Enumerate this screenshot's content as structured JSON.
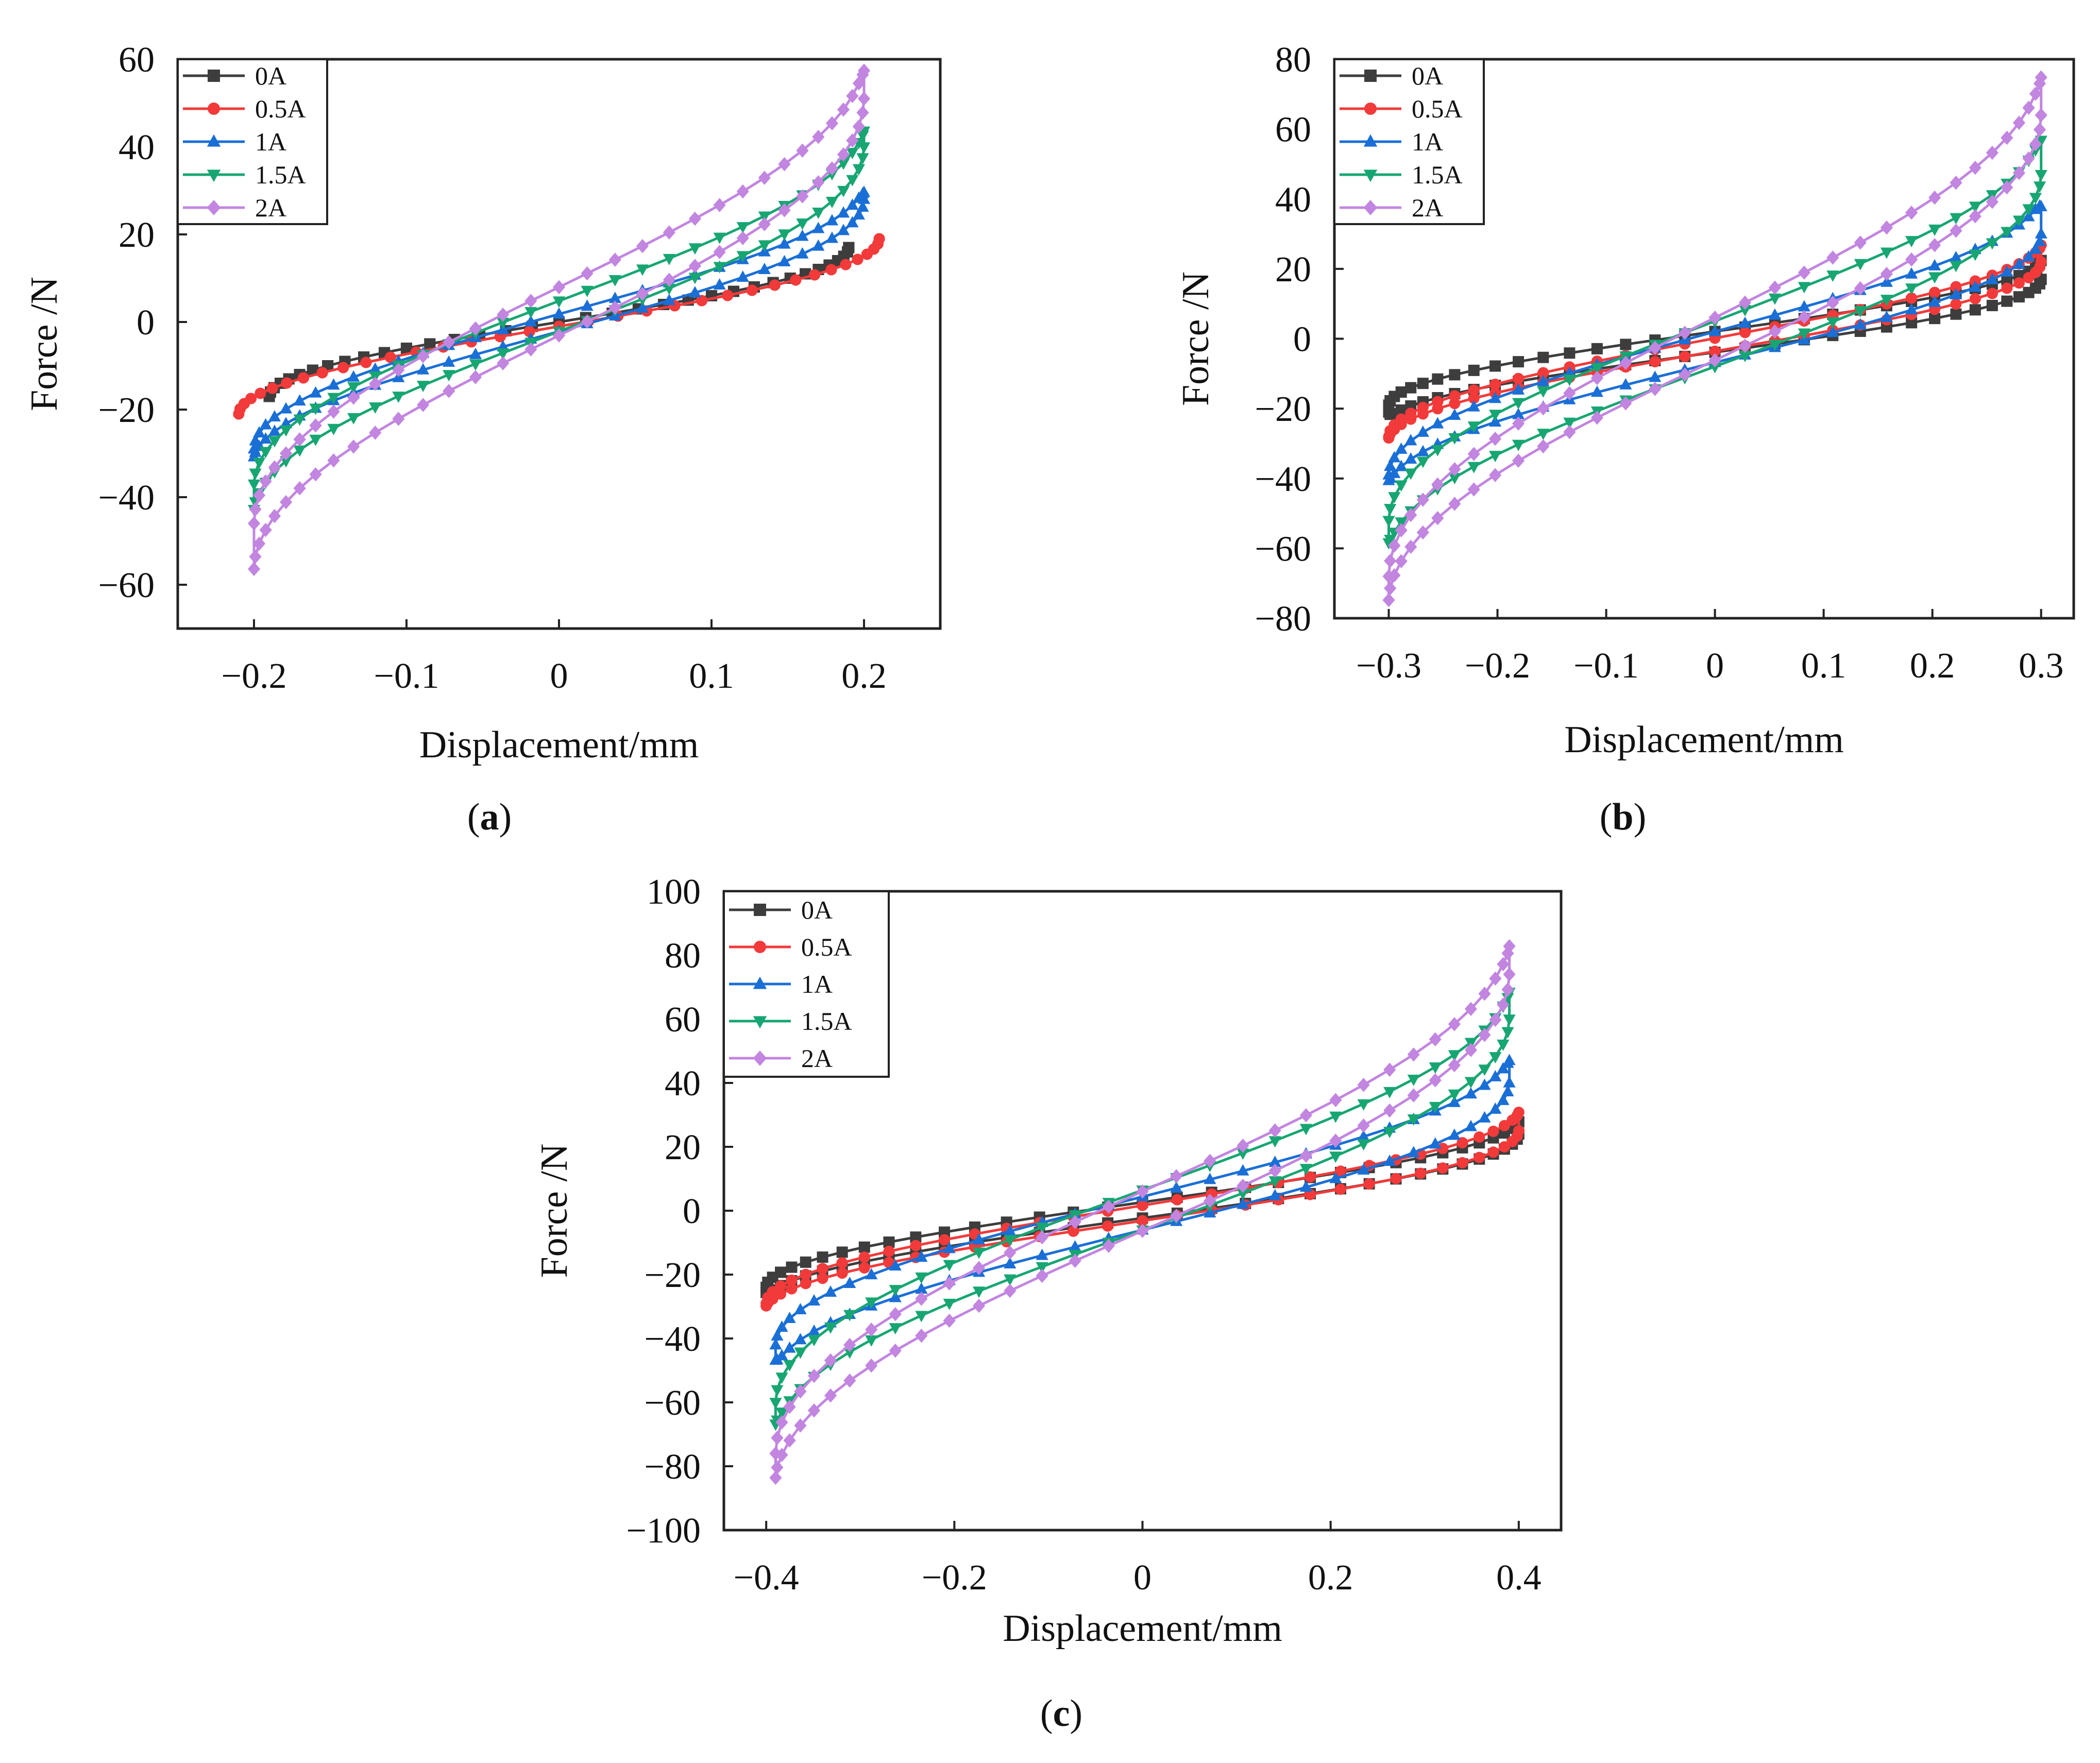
{
  "figure": {
    "series_styles": [
      {
        "name": "0A",
        "color": "#3d3d3d",
        "marker": "square"
      },
      {
        "name": "0.5A",
        "color": "#f23a3a",
        "marker": "circle"
      },
      {
        "name": "1A",
        "color": "#1a6fd6",
        "marker": "triangle-up"
      },
      {
        "name": "1.5A",
        "color": "#17a672",
        "marker": "triangle-down"
      },
      {
        "name": "2A",
        "color": "#c285e0",
        "marker": "diamond"
      }
    ]
  },
  "chart_data": [
    {
      "id": "a",
      "panel_label": "(a)",
      "type": "scatter",
      "xlabel": "Displacement/mm",
      "ylabel": "Force /N",
      "xlim": [
        -0.25,
        0.25
      ],
      "ylim": [
        -70,
        60
      ],
      "xticks": [
        -0.2,
        -0.1,
        0,
        0.1,
        0.2
      ],
      "xtick_labels": [
        "−0.2",
        "−0.1",
        "0",
        "0.1",
        "0.2"
      ],
      "yticks": [
        -60,
        -40,
        -20,
        0,
        20,
        40,
        60
      ],
      "ytick_labels": [
        "−60",
        "−40",
        "−20",
        "0",
        "20",
        "40",
        "60"
      ],
      "legend_position": "top-left",
      "series": [
        {
          "name": "0A",
          "x_amplitude": 0.19,
          "y_upper": [
            -17,
            17
          ],
          "y_lower": [
            -17,
            17
          ],
          "y_peak": 17,
          "y_trough": -17
        },
        {
          "name": "0.5A",
          "x_amplitude": 0.21,
          "y_upper": [
            -21,
            19
          ],
          "y_lower": [
            -21,
            19
          ],
          "y_peak": 19,
          "y_trough": -21
        },
        {
          "name": "1A",
          "x_amplitude": 0.2,
          "y_upper": [
            -29,
            28
          ],
          "y_lower": [
            -30,
            28
          ],
          "y_peak": 32,
          "y_trough": -32
        },
        {
          "name": "1.5A",
          "x_amplitude": 0.2,
          "y_upper": [
            -37,
            42
          ],
          "y_lower": [
            -42,
            40
          ],
          "y_peak": 46,
          "y_trough": -44
        },
        {
          "name": "2A",
          "x_amplitude": 0.2,
          "y_upper": [
            -46,
            55
          ],
          "y_lower": [
            -56,
            51
          ],
          "y_peak": 61,
          "y_trough": -57
        }
      ]
    },
    {
      "id": "b",
      "panel_label": "(b)",
      "type": "scatter",
      "xlabel": "Displacement/mm",
      "ylabel": "Force /N",
      "xlim": [
        -0.35,
        0.33
      ],
      "ylim": [
        -80,
        80
      ],
      "xticks": [
        -0.3,
        -0.2,
        -0.1,
        0,
        0.1,
        0.2,
        0.3
      ],
      "xtick_labels": [
        "−0.3",
        "−0.2",
        "−0.1",
        "0",
        "0.1",
        "0.2",
        "0.3"
      ],
      "yticks": [
        -80,
        -60,
        -40,
        -20,
        0,
        20,
        40,
        60,
        80
      ],
      "ytick_labels": [
        "−80",
        "−60",
        "−40",
        "−20",
        "0",
        "20",
        "40",
        "60",
        "80"
      ],
      "legend_position": "top-left",
      "series": [
        {
          "name": "0A",
          "x_amplitude": 0.3,
          "y_upper": [
            -19,
            22
          ],
          "y_lower": [
            -19,
            17
          ],
          "y_peak": 23,
          "y_trough": -24
        },
        {
          "name": "0.5A",
          "x_amplitude": 0.3,
          "y_upper": [
            -28,
            26
          ],
          "y_lower": [
            -28,
            22
          ],
          "y_peak": 28,
          "y_trough": -29
        },
        {
          "name": "1A",
          "x_amplitude": 0.3,
          "y_upper": [
            -39,
            35
          ],
          "y_lower": [
            -39,
            30
          ],
          "y_peak": 42,
          "y_trough": -43
        },
        {
          "name": "1.5A",
          "x_amplitude": 0.3,
          "y_upper": [
            -52,
            54
          ],
          "y_lower": [
            -56,
            47
          ],
          "y_peak": 61,
          "y_trough": -62
        },
        {
          "name": "2A",
          "x_amplitude": 0.3,
          "y_upper": [
            -68,
            72
          ],
          "y_lower": [
            -74,
            64
          ],
          "y_peak": 79,
          "y_trough": -76
        }
      ]
    },
    {
      "id": "c",
      "panel_label": "(c)",
      "type": "scatter",
      "xlabel": "Displacement/mm",
      "ylabel": "Force /N",
      "xlim": [
        -0.445,
        0.445
      ],
      "ylim": [
        -100,
        100
      ],
      "xticks": [
        -0.4,
        -0.2,
        0,
        0.2,
        0.4
      ],
      "xtick_labels": [
        "−0.4",
        "−0.2",
        "0",
        "0.2",
        "0.4"
      ],
      "yticks": [
        -100,
        -80,
        -60,
        -40,
        -20,
        0,
        20,
        40,
        60,
        80,
        100
      ],
      "ytick_labels": [
        "−100",
        "−80",
        "−60",
        "−40",
        "−20",
        "0",
        "20",
        "40",
        "60",
        "80",
        "100"
      ],
      "legend_position": "top-left",
      "series": [
        {
          "name": "0A",
          "x_amplitude": 0.4,
          "y_upper": [
            -24,
            27
          ],
          "y_lower": [
            -24,
            24
          ],
          "y_peak": 29,
          "y_trough": -28
        },
        {
          "name": "0.5A",
          "x_amplitude": 0.4,
          "y_upper": [
            -29,
            30
          ],
          "y_lower": [
            -29,
            25
          ],
          "y_peak": 32,
          "y_trough": -31
        },
        {
          "name": "1A",
          "x_amplitude": 0.39,
          "y_upper": [
            -42,
            45
          ],
          "y_lower": [
            -44,
            40
          ],
          "y_peak": 50,
          "y_trough": -51
        },
        {
          "name": "1.5A",
          "x_amplitude": 0.39,
          "y_upper": [
            -60,
            66
          ],
          "y_lower": [
            -64,
            60
          ],
          "y_peak": 72,
          "y_trough": -71
        },
        {
          "name": "2A",
          "x_amplitude": 0.39,
          "y_upper": [
            -76,
            80
          ],
          "y_lower": [
            -82,
            74
          ],
          "y_peak": 87,
          "y_trough": -86
        }
      ]
    }
  ]
}
